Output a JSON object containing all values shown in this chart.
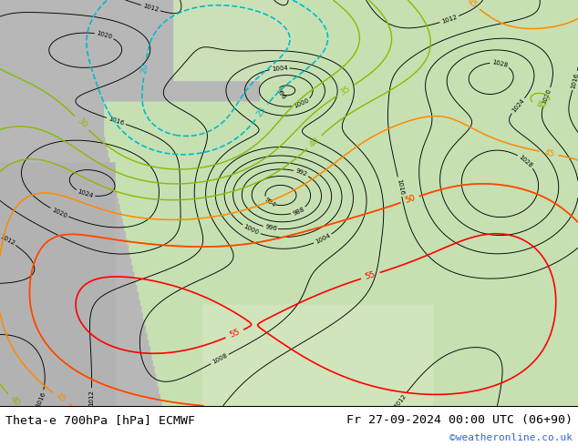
{
  "title_left": "Theta-e 700hPa [hPa] ECMWF",
  "title_right": "Fr 27-09-2024 00:00 UTC (06+90)",
  "copyright": "©weatheronline.co.uk",
  "figsize": [
    6.34,
    4.9
  ],
  "dpi": 100,
  "title_fontsize": 9.5,
  "copyright_color": "#3366cc",
  "copyright_fontsize": 8,
  "bg_green": "#c8e8b0",
  "bg_gray": "#b8b8b8",
  "bg_white": "#e8e8e8"
}
